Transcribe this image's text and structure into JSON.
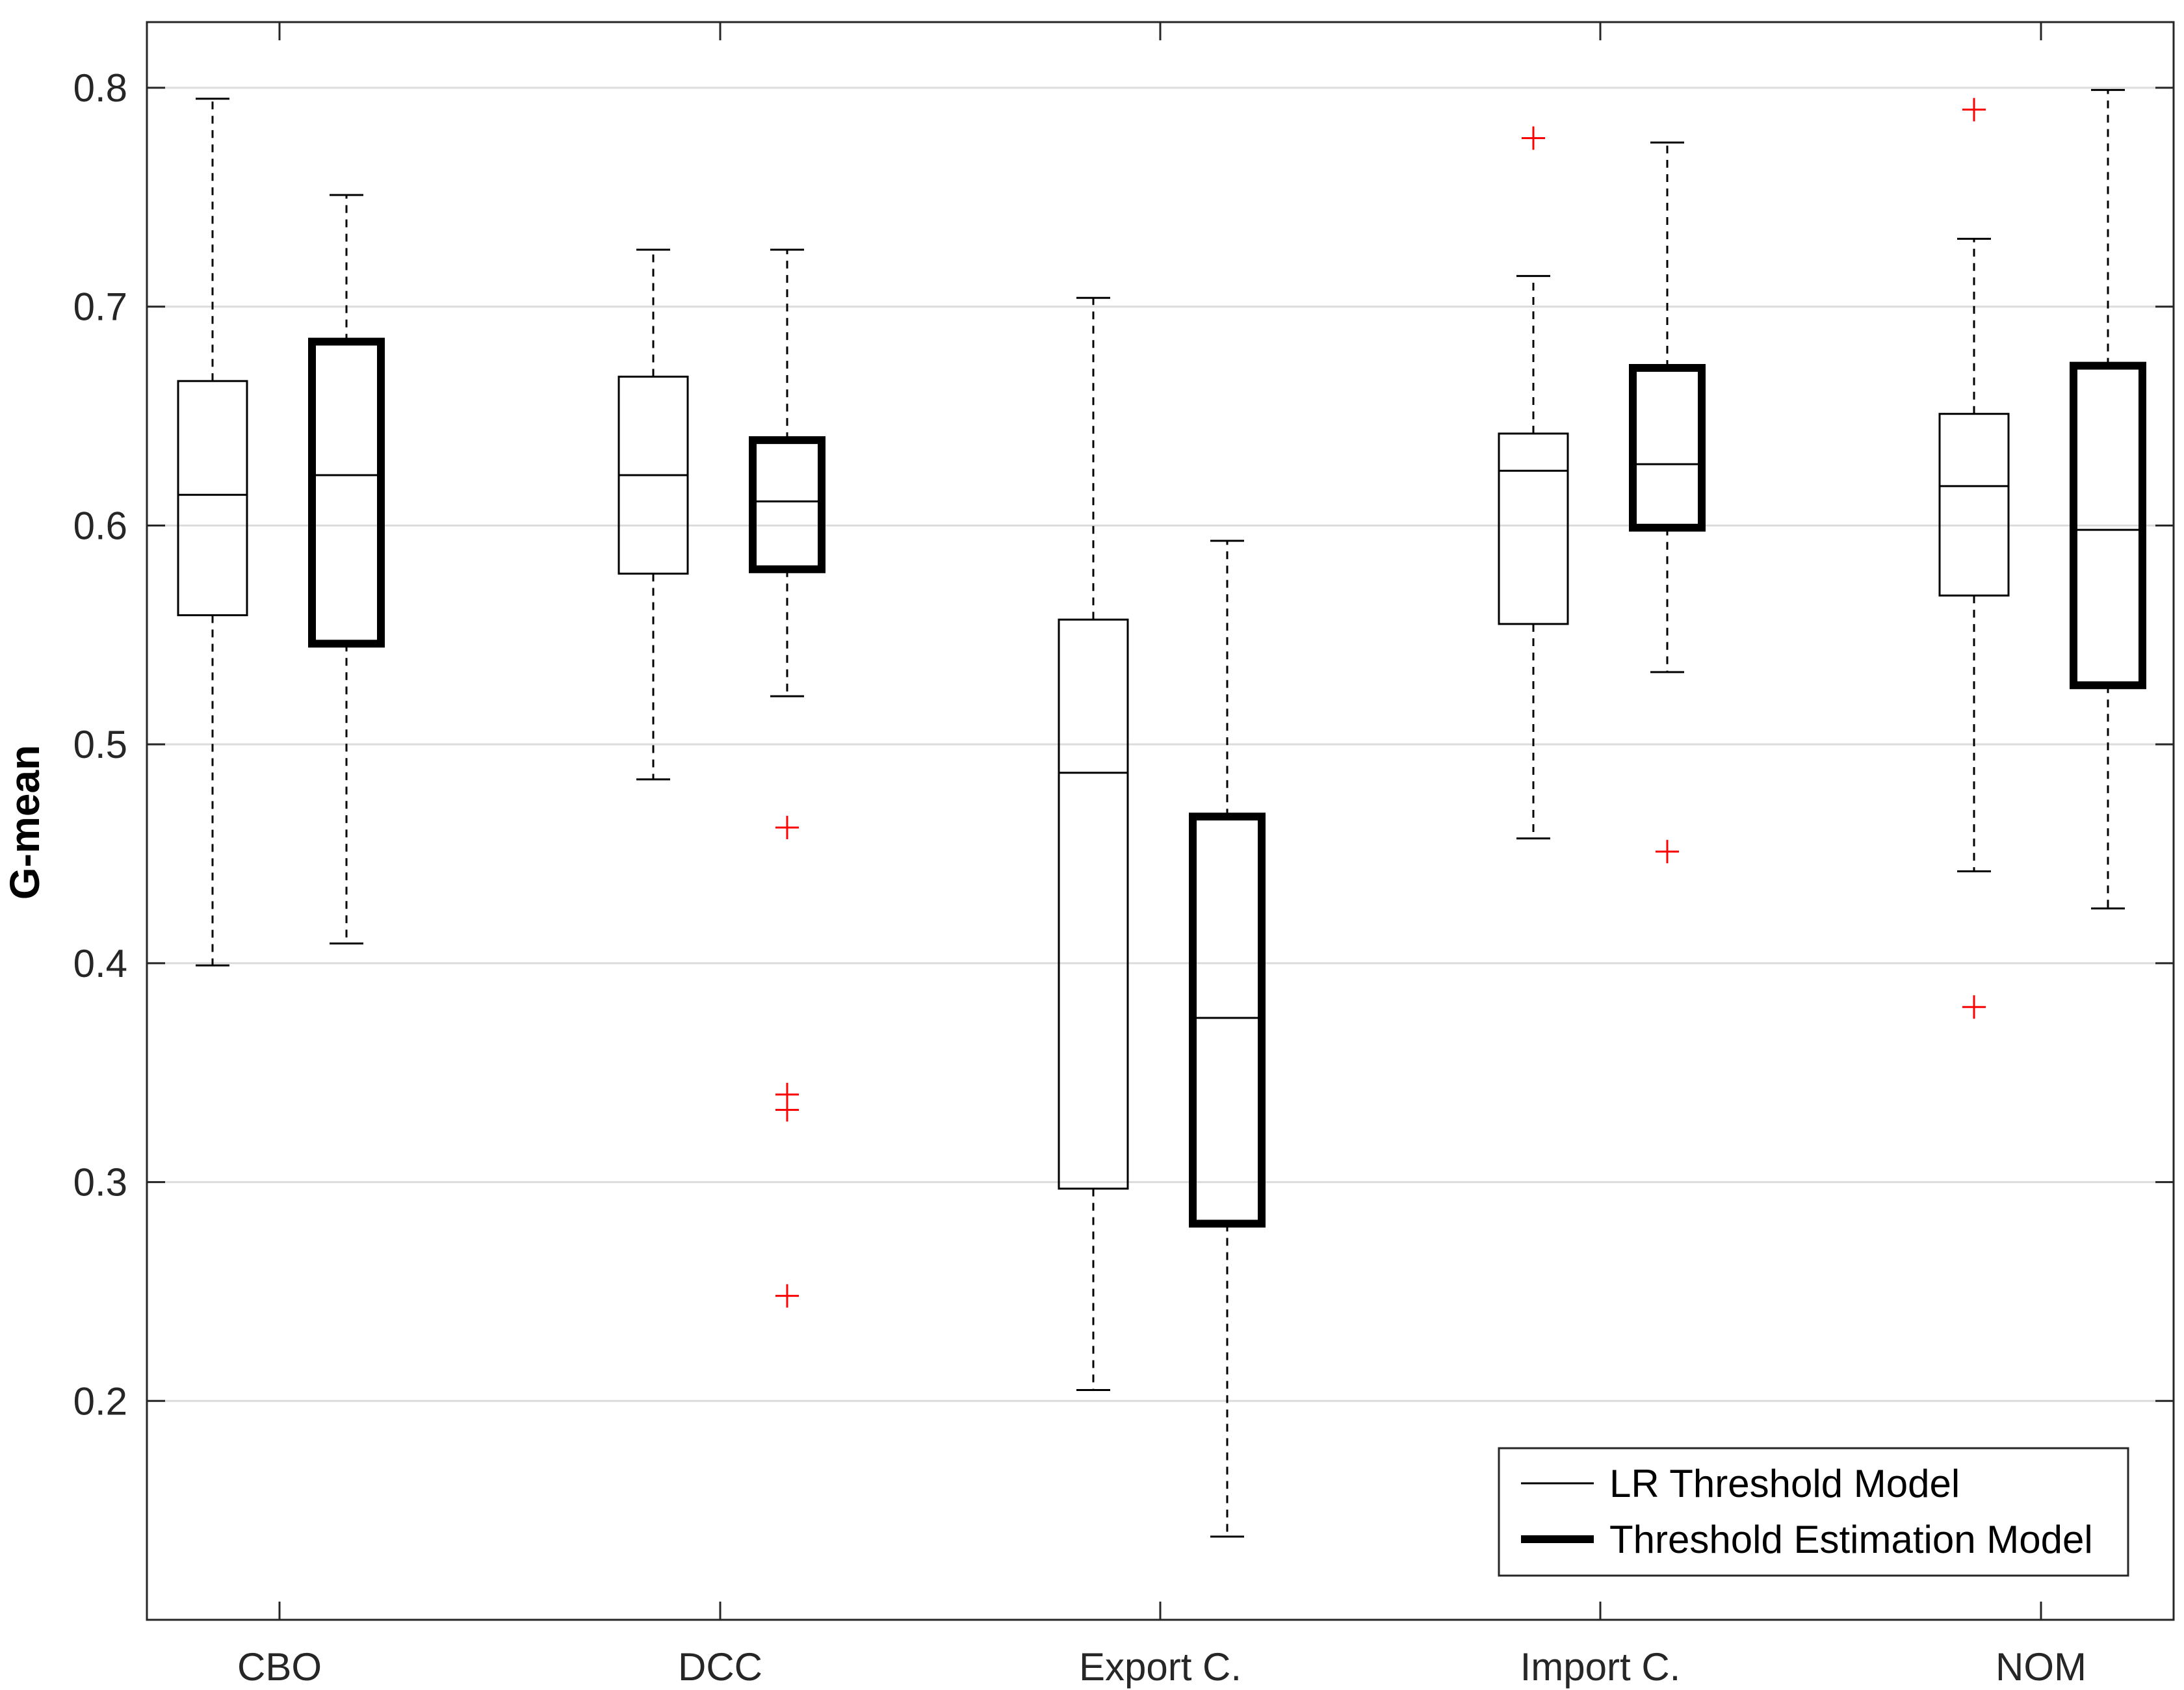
{
  "chart_data": {
    "type": "box",
    "title": "",
    "xlabel": "",
    "ylabel": "G-mean",
    "ylim": [
      0.1,
      0.83
    ],
    "yticks": [
      0.2,
      0.3,
      0.4,
      0.5,
      0.6,
      0.7,
      0.8
    ],
    "ytick_labels": [
      "0.2",
      "0.3",
      "0.4",
      "0.5",
      "0.6",
      "0.7",
      "0.8"
    ],
    "grid": true,
    "categories": [
      "CBO",
      "DCC",
      "Export C.",
      "Import C.",
      "NOM"
    ],
    "legend": {
      "placement": "bottom-right"
    },
    "series": [
      {
        "name": "LR Threshold Model",
        "style": "thin",
        "boxes": [
          {
            "whisker_low": 0.399,
            "q1": 0.559,
            "median": 0.614,
            "q3": 0.666,
            "whisker_high": 0.795,
            "outliers": []
          },
          {
            "whisker_low": 0.484,
            "q1": 0.578,
            "median": 0.623,
            "q3": 0.668,
            "whisker_high": 0.726,
            "outliers": []
          },
          {
            "whisker_low": 0.205,
            "q1": 0.297,
            "median": 0.487,
            "q3": 0.557,
            "whisker_high": 0.704,
            "outliers": []
          },
          {
            "whisker_low": 0.457,
            "q1": 0.555,
            "median": 0.625,
            "q3": 0.642,
            "whisker_high": 0.714,
            "outliers": [
              0.777
            ]
          },
          {
            "whisker_low": 0.442,
            "q1": 0.568,
            "median": 0.618,
            "q3": 0.651,
            "whisker_high": 0.731,
            "outliers": [
              0.79,
              0.38
            ]
          }
        ]
      },
      {
        "name": "Threshold Estimation Model",
        "style": "thick",
        "boxes": [
          {
            "whisker_low": 0.409,
            "q1": 0.546,
            "median": 0.623,
            "q3": 0.684,
            "whisker_high": 0.751,
            "outliers": []
          },
          {
            "whisker_low": 0.522,
            "q1": 0.58,
            "median": 0.611,
            "q3": 0.639,
            "whisker_high": 0.726,
            "outliers": [
              0.462,
              0.34,
              0.333,
              0.248
            ]
          },
          {
            "whisker_low": 0.138,
            "q1": 0.281,
            "median": 0.375,
            "q3": 0.467,
            "whisker_high": 0.593,
            "outliers": []
          },
          {
            "whisker_low": 0.533,
            "q1": 0.599,
            "median": 0.628,
            "q3": 0.672,
            "whisker_high": 0.775,
            "outliers": [
              0.451
            ]
          },
          {
            "whisker_low": 0.425,
            "q1": 0.527,
            "median": 0.598,
            "q3": 0.673,
            "whisker_high": 0.799,
            "outliers": []
          }
        ]
      }
    ]
  },
  "colors": {
    "box": "#000000",
    "outlier": "#ff0000",
    "grid": "#dcdcdc",
    "axis": "#262626"
  }
}
